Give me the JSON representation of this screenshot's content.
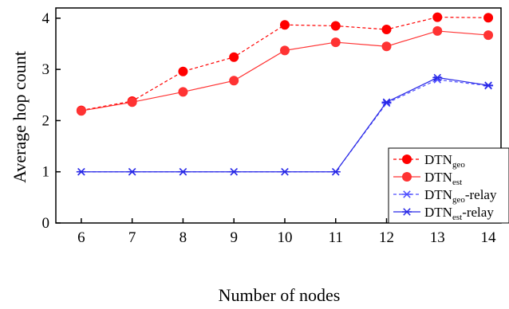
{
  "chart_data": {
    "type": "line",
    "xlabel": "Number of nodes",
    "ylabel": "Average hop count",
    "x": [
      6,
      7,
      8,
      9,
      10,
      11,
      12,
      13,
      14
    ],
    "xlim": [
      5.5,
      14.25
    ],
    "ylim": [
      0,
      4.2
    ],
    "x_ticks": [
      "6",
      "7",
      "8",
      "9",
      "10",
      "11",
      "12",
      "13",
      "14"
    ],
    "y_ticks": [
      "0",
      "1",
      "2",
      "3",
      "4"
    ],
    "grid": false,
    "legend_position": "bottom-right",
    "series": [
      {
        "name_main": "DTN",
        "name_sub": "geo",
        "name_suffix": "",
        "color": "#ff0000",
        "line_style": "dashed",
        "marker": "circle",
        "values": [
          2.2,
          2.38,
          2.96,
          3.24,
          3.87,
          3.85,
          3.78,
          4.02,
          4.01
        ]
      },
      {
        "name_main": "DTN",
        "name_sub": "est",
        "name_suffix": "",
        "color": "#ff3333",
        "line_style": "solid",
        "marker": "circle",
        "values": [
          2.19,
          2.36,
          2.56,
          2.78,
          3.37,
          3.53,
          3.45,
          3.75,
          3.67
        ]
      },
      {
        "name_main": "DTN",
        "name_sub": "geo",
        "name_suffix": "-relay",
        "color": "#4d4dff",
        "line_style": "dashed",
        "marker": "asterisk",
        "values": [
          1.0,
          1.0,
          1.0,
          1.0,
          1.0,
          1.0,
          2.34,
          2.8,
          2.68
        ]
      },
      {
        "name_main": "DTN",
        "name_sub": "est",
        "name_suffix": "-relay",
        "color": "#2828e6",
        "line_style": "solid",
        "marker": "asterisk",
        "values": [
          1.0,
          1.0,
          1.0,
          1.0,
          1.0,
          1.0,
          2.36,
          2.84,
          2.69
        ]
      }
    ]
  }
}
